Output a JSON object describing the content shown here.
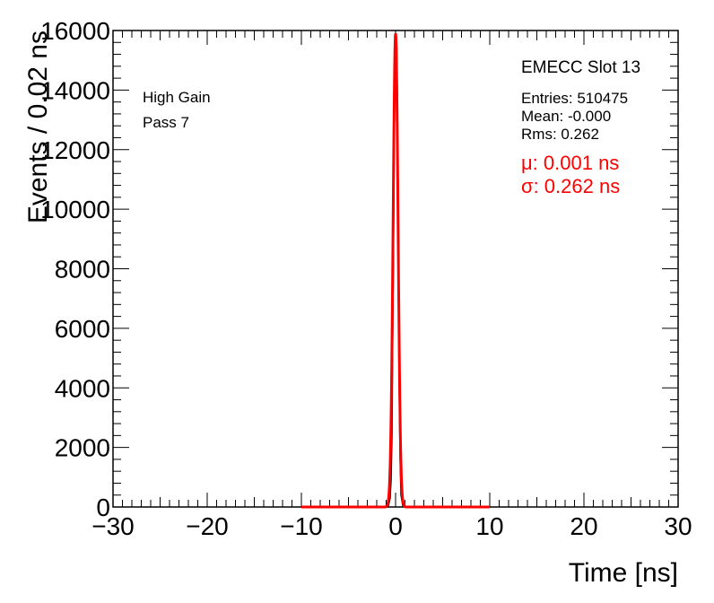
{
  "chart_data": {
    "type": "line",
    "xlabel": "Time [ns]",
    "ylabel": "Events / 0.02 ns",
    "xlim": [
      -30,
      30
    ],
    "ylim": [
      0,
      16000
    ],
    "x_ticks": [
      -30,
      -20,
      -10,
      0,
      10,
      20,
      30
    ],
    "x_tick_labels": [
      "−30",
      "−20",
      "−10",
      "0",
      "10",
      "20",
      "30"
    ],
    "y_ticks": [
      0,
      2000,
      4000,
      6000,
      8000,
      10000,
      12000,
      14000,
      16000
    ],
    "y_tick_labels": [
      "0",
      "2000",
      "4000",
      "6000",
      "8000",
      "10000",
      "12000",
      "14000",
      "16000"
    ],
    "grid": false,
    "series": [
      {
        "kind": "histogram",
        "color": "#000000",
        "x": [
          -1.0,
          -0.8,
          -0.6,
          -0.5,
          -0.4,
          -0.3,
          -0.2,
          -0.1,
          0.0,
          0.1,
          0.2,
          0.3,
          0.4,
          0.5,
          0.6,
          0.8,
          1.0
        ],
        "values": [
          0,
          10,
          300,
          900,
          2500,
          6500,
          10500,
          14800,
          15900,
          15600,
          12800,
          9000,
          4200,
          1600,
          400,
          20,
          0
        ]
      },
      {
        "kind": "gaussian-fit",
        "color": "#ff0000",
        "range": [
          -10,
          10
        ],
        "mu": 0.001,
        "sigma": 0.262,
        "amplitude": 15900
      }
    ]
  },
  "labels": {
    "run_line1": "High Gain",
    "run_line2": "Pass 7"
  },
  "stats": {
    "title": "EMECC Slot 13",
    "entries": "Entries: 510475",
    "mean": "Mean: -0.000",
    "rms": "Rms: 0.262",
    "mu": "μ: 0.001 ns",
    "sigma": "σ: 0.262 ns",
    "fit_color": "#ff0000"
  }
}
